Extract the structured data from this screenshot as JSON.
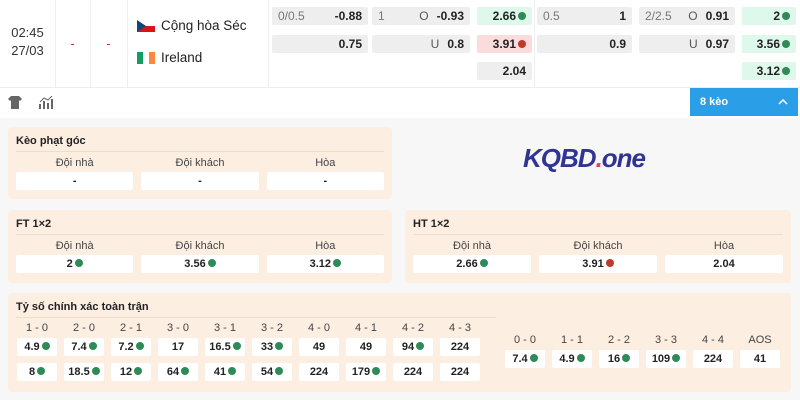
{
  "match": {
    "time": "02:45",
    "date": "27/03",
    "score1": "-",
    "score2": "-",
    "home": {
      "name": "Cộng hòa Séc",
      "flag": "czech-flag"
    },
    "away": {
      "name": "Ireland",
      "flag": "ireland-flag"
    }
  },
  "odds": [
    {
      "l": "0/0.5",
      "m": "",
      "v": "-0.88",
      "t": ""
    },
    {
      "l": "1",
      "m": "O",
      "v": "-0.93",
      "t": ""
    },
    {
      "l": "",
      "m": "",
      "v": "2.66",
      "t": "up"
    },
    {
      "l": "0.5",
      "m": "",
      "v": "1",
      "t": ""
    },
    {
      "l": "2/2.5",
      "m": "O",
      "v": "0.91",
      "t": ""
    },
    {
      "l": "",
      "m": "",
      "v": "2",
      "t": "up"
    },
    {
      "l": "",
      "m": "",
      "v": "0.75",
      "t": ""
    },
    {
      "l": "",
      "m": "U",
      "v": "0.8",
      "t": ""
    },
    {
      "l": "",
      "m": "",
      "v": "3.91",
      "t": "down"
    },
    {
      "l": "",
      "m": "",
      "v": "0.9",
      "t": ""
    },
    {
      "l": "",
      "m": "U",
      "v": "0.97",
      "t": ""
    },
    {
      "l": "",
      "m": "",
      "v": "3.56",
      "t": "up"
    },
    {
      "l": "",
      "m": "",
      "v": "2.04",
      "t": ""
    },
    {
      "l": "",
      "m": "",
      "v": "3.12",
      "t": "up"
    }
  ],
  "toolbar": {
    "more_label": "8 kèo"
  },
  "corner": {
    "title": "Kèo phạt góc",
    "headers": [
      "Đội nhà",
      "Đội khách",
      "Hòa"
    ],
    "values": [
      {
        "v": "-",
        "t": "plain"
      },
      {
        "v": "-",
        "t": "plain"
      },
      {
        "v": "-",
        "t": "plain"
      }
    ]
  },
  "logo": {
    "text": "KQBD",
    "dot": ".",
    "suffix": "one"
  },
  "ft": {
    "title": "FT 1×2",
    "headers": [
      "Đội nhà",
      "Đội khách",
      "Hòa"
    ],
    "values": [
      {
        "v": "2",
        "t": "up"
      },
      {
        "v": "3.56",
        "t": "up"
      },
      {
        "v": "3.12",
        "t": "up"
      }
    ]
  },
  "ht": {
    "title": "HT 1×2",
    "headers": [
      "Đội nhà",
      "Đội khách",
      "Hòa"
    ],
    "values": [
      {
        "v": "2.66",
        "t": "up"
      },
      {
        "v": "3.91",
        "t": "down"
      },
      {
        "v": "2.04",
        "t": "plain"
      }
    ]
  },
  "correct_score": {
    "title": "Tỷ số chính xác toàn trận",
    "left": [
      {
        "s": "1 - 0",
        "a": {
          "v": "4.9",
          "t": "up"
        },
        "b": {
          "v": "8",
          "t": "up"
        }
      },
      {
        "s": "2 - 0",
        "a": {
          "v": "7.4",
          "t": "up"
        },
        "b": {
          "v": "18.5",
          "t": "up"
        }
      },
      {
        "s": "2 - 1",
        "a": {
          "v": "7.2",
          "t": "up"
        },
        "b": {
          "v": "12",
          "t": "up"
        }
      },
      {
        "s": "3 - 0",
        "a": {
          "v": "17",
          "t": "plain"
        },
        "b": {
          "v": "64",
          "t": "up"
        }
      },
      {
        "s": "3 - 1",
        "a": {
          "v": "16.5",
          "t": "up"
        },
        "b": {
          "v": "41",
          "t": "up"
        }
      },
      {
        "s": "3 - 2",
        "a": {
          "v": "33",
          "t": "up"
        },
        "b": {
          "v": "54",
          "t": "up"
        }
      },
      {
        "s": "4 - 0",
        "a": {
          "v": "49",
          "t": "plain"
        },
        "b": {
          "v": "224",
          "t": "plain"
        }
      },
      {
        "s": "4 - 1",
        "a": {
          "v": "49",
          "t": "plain"
        },
        "b": {
          "v": "179",
          "t": "up"
        }
      },
      {
        "s": "4 - 2",
        "a": {
          "v": "94",
          "t": "up"
        },
        "b": {
          "v": "224",
          "t": "plain"
        }
      },
      {
        "s": "4 - 3",
        "a": {
          "v": "224",
          "t": "plain"
        },
        "b": {
          "v": "224",
          "t": "plain"
        }
      }
    ],
    "right": [
      {
        "s": "0 - 0",
        "a": {
          "v": "7.4",
          "t": "up"
        }
      },
      {
        "s": "1 - 1",
        "a": {
          "v": "4.9",
          "t": "up"
        }
      },
      {
        "s": "2 - 2",
        "a": {
          "v": "16",
          "t": "up"
        }
      },
      {
        "s": "3 - 3",
        "a": {
          "v": "109",
          "t": "up"
        }
      },
      {
        "s": "4 - 4",
        "a": {
          "v": "224",
          "t": "plain"
        }
      },
      {
        "s": "AOS",
        "a": {
          "v": "41",
          "t": "plain"
        }
      }
    ]
  },
  "colors": {
    "accent": "#2a9fe8",
    "up": "#2e8b57",
    "down": "#c0392b",
    "panel": "#fdeee2"
  }
}
